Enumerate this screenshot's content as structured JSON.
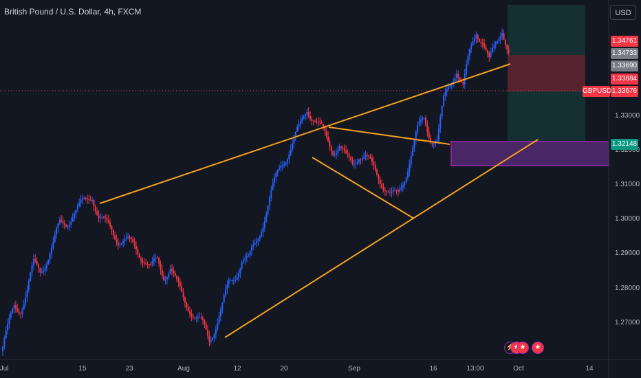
{
  "header": {
    "symbol_title": "British Pound / U.S. Dollar, 4h, FXCM",
    "currency": "USD"
  },
  "colors": {
    "bg": "#131722",
    "up": "#2962ff",
    "down": "#f23645",
    "trendline": "#f7a21b",
    "zone": "#9c27b0",
    "target_zone": "#1b3a39",
    "stop_zone": "#6b2630"
  },
  "price_labels": [
    {
      "text": "1.34761",
      "color": "#f23645"
    },
    {
      "text": "1.34733",
      "color": "#787b86"
    },
    {
      "text": "1.33690",
      "color": "#787b86"
    },
    {
      "text": "1.33684",
      "color": "#f23645"
    },
    {
      "text": "1.33676",
      "color": "#f23645"
    },
    {
      "text": "1.32148",
      "color": "#089981"
    }
  ],
  "pair_tag": "GBPUSD",
  "event_icons": [
    "lightning-icon",
    "us-flag-icon",
    "us-flag-icon",
    "us-flag-icon"
  ],
  "chart_data": {
    "type": "line",
    "series": [
      {
        "values": [
          1.265,
          1.27,
          1.276,
          1.276,
          1.28,
          1.286,
          1.285,
          1.288,
          1.291,
          1.296,
          1.297,
          1.299,
          1.3,
          1.302,
          1.304,
          1.298,
          1.296,
          1.295,
          1.293,
          1.292,
          1.291,
          1.29,
          1.288,
          1.285,
          1.287,
          1.284,
          1.286,
          1.281,
          1.278,
          1.276,
          1.273,
          1.271,
          1.268,
          1.272,
          1.276,
          1.281,
          1.284,
          1.288,
          1.287,
          1.291,
          1.296,
          1.301,
          1.306,
          1.311,
          1.314,
          1.317,
          1.32,
          1.325,
          1.323,
          1.32,
          1.317,
          1.315,
          1.316,
          1.312,
          1.311,
          1.314,
          1.313,
          1.31,
          1.308,
          1.306,
          1.303,
          1.303,
          1.308,
          1.314,
          1.319,
          1.322,
          1.318,
          1.317,
          1.326,
          1.331,
          1.335,
          1.33,
          1.338,
          1.344,
          1.342,
          1.336,
          1.34,
          1.345,
          1.339
        ]
      }
    ],
    "xticks": [
      "Jul",
      "15",
      "23",
      "Aug",
      "12",
      "20",
      "Sep",
      "16",
      "13:00",
      "Oct",
      "14"
    ],
    "yticks": [
      "1.33000",
      "1.32000",
      "1.31000",
      "1.30000",
      "1.29000",
      "1.28000",
      "1.27000"
    ],
    "ylim": [
      1.263,
      1.351
    ],
    "annotations": [
      "rising wedge trendlines",
      "triangle trendlines",
      "demand zone 1.3160-1.3215",
      "long position: target 1.34761, stop 1.32148",
      "current price 1.33676"
    ]
  }
}
